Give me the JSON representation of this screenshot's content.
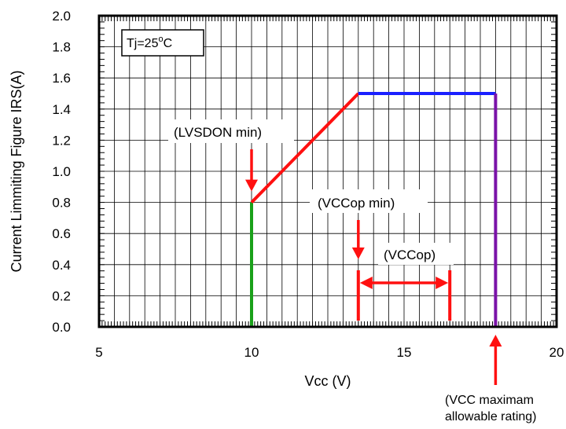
{
  "chart_data": {
    "type": "line",
    "title": "",
    "xlabel": "Vcc (V)",
    "ylabel": "Current Limmiting Figure  IRS(A)",
    "xlim": [
      5,
      20
    ],
    "ylim": [
      0,
      2.0
    ],
    "x_ticks": [
      "5",
      "10",
      "15",
      "20"
    ],
    "y_ticks": [
      "0.0",
      "0.2",
      "0.4",
      "0.6",
      "0.8",
      "1.0",
      "1.2",
      "1.4",
      "1.6",
      "1.8",
      "2.0"
    ],
    "grid": true,
    "condition_label": {
      "prefix": "Tj=25",
      "sup": "o",
      "suffix": "C"
    },
    "series": [
      {
        "color": "#1aa11a",
        "points": [
          [
            10,
            0.0
          ],
          [
            10,
            0.8
          ]
        ]
      },
      {
        "color": "#ff1010",
        "points": [
          [
            10,
            0.8
          ],
          [
            13.5,
            1.5
          ]
        ]
      },
      {
        "color": "#1a20ff",
        "points": [
          [
            13.5,
            1.5
          ],
          [
            18,
            1.5
          ]
        ]
      },
      {
        "color": "#7a12a8",
        "points": [
          [
            18,
            1.5
          ],
          [
            18,
            0.0
          ]
        ]
      }
    ],
    "annotations": {
      "lvsdon": "(LVSDON min)",
      "vccop_min": "(VCCop min)",
      "vccop": "(VCCop)",
      "vcc_max_line1": "(VCC maximam",
      "vcc_max_line2": "allowable rating)"
    },
    "marker_values": {
      "lvsdon_x": 10,
      "vccop_min_x": 13.5,
      "vccop_range": [
        13.5,
        16.5
      ],
      "vcc_max_x": 18
    },
    "arrow_color": "#ff1010"
  }
}
